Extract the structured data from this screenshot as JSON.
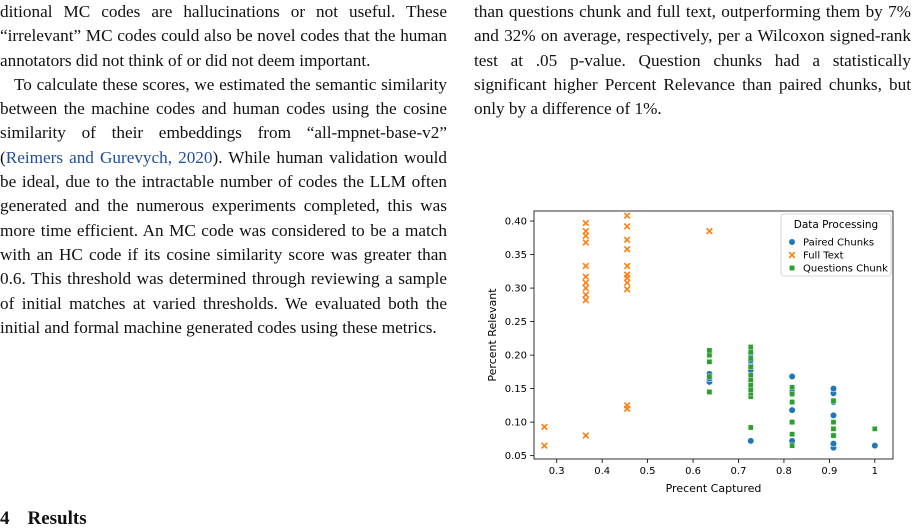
{
  "left_column": {
    "p1": "ditional MC codes are hallucinations or not useful. These “irrelevant” MC codes could also be novel codes that the human annotators did not think of or did not deem important.",
    "p2_before": "To calculate these scores, we estimated the semantic similarity between the machine codes and human codes using the cosine similarity of their embeddings from “all-mpnet-base-v2” (",
    "p2_cite": "Reimers and Gurevych, 2020",
    "p2_after": "). While human validation would be ideal, due to the intractable number of codes the LLM often generated and the numerous experiments completed, this was more time efficient. An MC code was considered to be a match with an HC code if its cosine similarity score was greater than 0.6. This threshold was determined through reviewing a sample of initial matches at varied thresholds. We evaluated both the initial and formal machine generated codes using these metrics."
  },
  "section_heading": {
    "number": "4",
    "title": "Results"
  },
  "right_column": {
    "p1": "than questions chunk and full text, outperforming them by 7% and 32% on average, respectively, per a Wilcoxon signed-rank test at .05 p-value. Question chunks had a statistically significant higher Percent Relevance than paired chunks, but only by a difference of 1%."
  },
  "chart_data": {
    "type": "scatter",
    "xlabel": "Precent Captured",
    "ylabel": "Percent Relevant",
    "xlim": [
      0.25,
      1.04
    ],
    "ylim": [
      0.045,
      0.415
    ],
    "xticks": [
      0.3,
      0.4,
      0.5,
      0.6,
      0.7,
      0.8,
      0.9,
      1.0
    ],
    "yticks": [
      0.05,
      0.1,
      0.15,
      0.2,
      0.25,
      0.3,
      0.35,
      0.4
    ],
    "grid": false,
    "legend": {
      "title": "Data Processing",
      "placement": "top-right"
    },
    "series": [
      {
        "name": "Paired Chunks",
        "color": "#1f77b4",
        "marker": "circle",
        "points": [
          [
            0.636,
            0.16
          ],
          [
            0.636,
            0.165
          ],
          [
            0.636,
            0.172
          ],
          [
            0.727,
            0.072
          ],
          [
            0.727,
            0.14
          ],
          [
            0.727,
            0.15
          ],
          [
            0.727,
            0.16
          ],
          [
            0.727,
            0.178
          ],
          [
            0.727,
            0.185
          ],
          [
            0.727,
            0.192
          ],
          [
            0.727,
            0.202
          ],
          [
            0.818,
            0.072
          ],
          [
            0.818,
            0.1
          ],
          [
            0.818,
            0.118
          ],
          [
            0.818,
            0.145
          ],
          [
            0.818,
            0.168
          ],
          [
            0.909,
            0.062
          ],
          [
            0.909,
            0.068
          ],
          [
            0.909,
            0.08
          ],
          [
            0.909,
            0.11
          ],
          [
            0.909,
            0.13
          ],
          [
            0.909,
            0.143
          ],
          [
            0.909,
            0.15
          ],
          [
            1.0,
            0.065
          ]
        ]
      },
      {
        "name": "Full Text",
        "color": "#ff7f0e",
        "marker": "x",
        "points": [
          [
            0.273,
            0.093
          ],
          [
            0.273,
            0.065
          ],
          [
            0.364,
            0.08
          ],
          [
            0.364,
            0.282
          ],
          [
            0.364,
            0.29
          ],
          [
            0.364,
            0.3
          ],
          [
            0.364,
            0.308
          ],
          [
            0.364,
            0.317
          ],
          [
            0.364,
            0.333
          ],
          [
            0.364,
            0.368
          ],
          [
            0.364,
            0.378
          ],
          [
            0.364,
            0.385
          ],
          [
            0.364,
            0.397
          ],
          [
            0.455,
            0.12
          ],
          [
            0.455,
            0.125
          ],
          [
            0.455,
            0.298
          ],
          [
            0.455,
            0.308
          ],
          [
            0.455,
            0.315
          ],
          [
            0.455,
            0.32
          ],
          [
            0.455,
            0.333
          ],
          [
            0.455,
            0.358
          ],
          [
            0.455,
            0.372
          ],
          [
            0.455,
            0.392
          ],
          [
            0.455,
            0.408
          ],
          [
            0.636,
            0.385
          ]
        ]
      },
      {
        "name": "Questions Chunk",
        "color": "#2ca02c",
        "marker": "square",
        "points": [
          [
            0.636,
            0.145
          ],
          [
            0.636,
            0.168
          ],
          [
            0.636,
            0.19
          ],
          [
            0.636,
            0.2
          ],
          [
            0.636,
            0.207
          ],
          [
            0.727,
            0.092
          ],
          [
            0.727,
            0.138
          ],
          [
            0.727,
            0.143
          ],
          [
            0.727,
            0.148
          ],
          [
            0.727,
            0.155
          ],
          [
            0.727,
            0.163
          ],
          [
            0.727,
            0.17
          ],
          [
            0.727,
            0.182
          ],
          [
            0.727,
            0.195
          ],
          [
            0.727,
            0.205
          ],
          [
            0.727,
            0.212
          ],
          [
            0.818,
            0.065
          ],
          [
            0.818,
            0.082
          ],
          [
            0.818,
            0.1
          ],
          [
            0.818,
            0.13
          ],
          [
            0.818,
            0.142
          ],
          [
            0.818,
            0.152
          ],
          [
            0.909,
            0.08
          ],
          [
            0.909,
            0.09
          ],
          [
            0.909,
            0.1
          ],
          [
            0.909,
            0.132
          ],
          [
            1.0,
            0.09
          ]
        ]
      }
    ]
  }
}
